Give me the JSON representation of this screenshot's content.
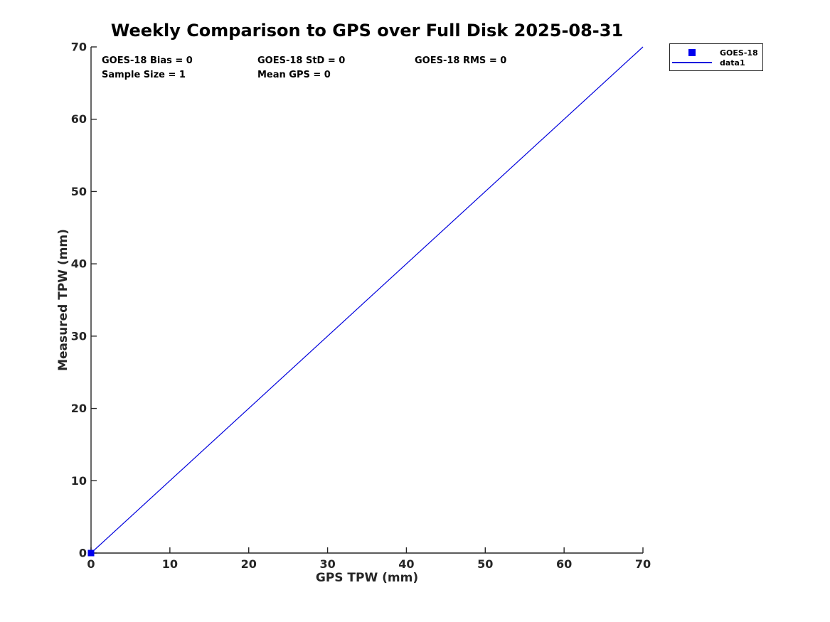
{
  "chart_data": {
    "type": "scatter",
    "title": "Weekly Comparison to GPS over Full Disk 2025-08-31",
    "xlabel": "GPS TPW (mm)",
    "ylabel": "Measured TPW (mm)",
    "xlim": [
      0,
      70
    ],
    "ylim": [
      0,
      70
    ],
    "xticks": [
      0,
      10,
      20,
      30,
      40,
      50,
      60,
      70
    ],
    "yticks": [
      0,
      10,
      20,
      30,
      40,
      50,
      60,
      70
    ],
    "grid": false,
    "legend_position": "outside-top-right",
    "series": [
      {
        "name": "GOES-18",
        "type": "scatter",
        "marker": "square",
        "color": "#0000ee",
        "points": [
          [
            0,
            0
          ]
        ]
      },
      {
        "name": "data1",
        "type": "line",
        "color": "#0000dd",
        "points": [
          [
            0,
            0
          ],
          [
            70,
            70
          ]
        ]
      }
    ],
    "stats_text": {
      "bias": "GOES-18 Bias = 0",
      "std": "GOES-18 StD = 0",
      "rms": "GOES-18 RMS = 0",
      "sample_size": "Sample Size = 1",
      "mean_gps": "Mean GPS = 0"
    }
  },
  "colors": {
    "axis": "#262626",
    "text": "#000000",
    "background": "#ffffff"
  }
}
